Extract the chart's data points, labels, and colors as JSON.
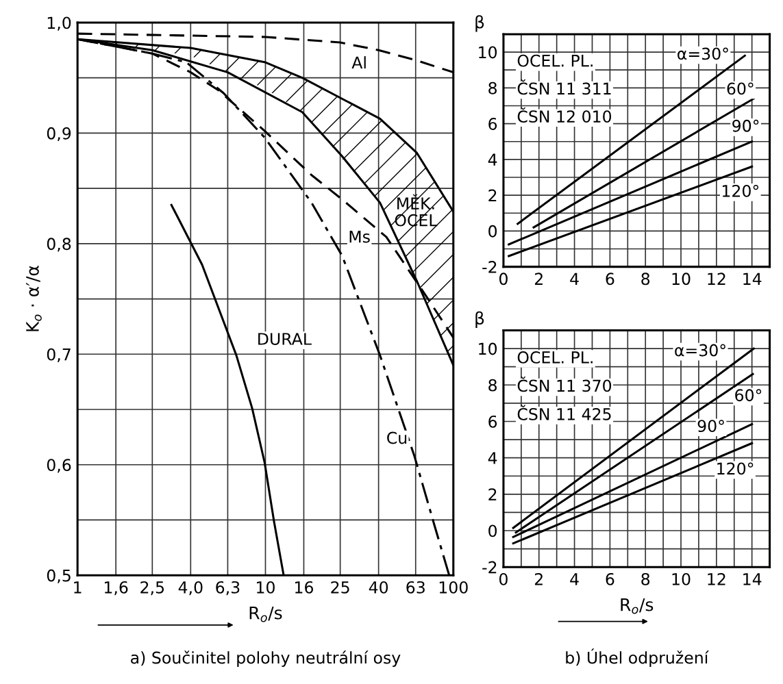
{
  "chart_data": [
    {
      "type": "line",
      "title": "a) Součinitel polohy neutrální osy",
      "xlabel": "R$_{o}$/s",
      "ylabel": "K$_{o}$ · α′/α",
      "log": "x",
      "grid": true,
      "xlim": [
        1,
        100
      ],
      "ylim": [
        0.5,
        1.0
      ],
      "xticks": [
        1,
        {
          "value": 1.6,
          "label": "1,6"
        },
        {
          "value": 2.5,
          "label": "2,5"
        },
        {
          "value": 4.0,
          "label": "4,0"
        },
        {
          "value": 6.3,
          "label": "6,3"
        },
        10,
        16,
        25,
        40,
        63,
        100
      ],
      "yticks": [
        {
          "value": 0.5,
          "label": "0,5"
        },
        {
          "value": 0.55,
          "label": null
        },
        {
          "value": 0.6,
          "label": "0,6"
        },
        {
          "value": 0.65,
          "label": null
        },
        {
          "value": 0.7,
          "label": "0,7"
        },
        {
          "value": 0.75,
          "label": null
        },
        {
          "value": 0.8,
          "label": "0,8"
        },
        {
          "value": 0.85,
          "label": null
        },
        {
          "value": 0.9,
          "label": "0,9"
        },
        {
          "value": 0.95,
          "label": null
        },
        {
          "value": 1.0,
          "label": "1,0"
        }
      ],
      "series": [
        {
          "name": "Al",
          "color": "#000000",
          "line_style": "dashed",
          "x": [
            1,
            10,
            25,
            40,
            63,
            100
          ],
          "values": [
            0.99,
            0.987,
            0.982,
            0.975,
            0.966,
            0.955
          ]
        },
        {
          "name": "MĚK. OCEL",
          "color": "#000000",
          "line_style": "solid",
          "x": [
            1,
            4,
            10,
            15.7,
            40.7,
            64,
            100
          ],
          "values": [
            0.985,
            0.977,
            0.964,
            0.95,
            0.913,
            0.882,
            0.829
          ],
          "lower": [
            0.985,
            0.97,
            0.94,
            0.919,
            0.837,
            0.766,
            0.69
          ],
          "upper": [
            0.985,
            0.977,
            0.964,
            0.95,
            0.913,
            0.882,
            0.829
          ]
        },
        {
          "color": "#000000",
          "line_style": "solid",
          "x": [
            1,
            2.5,
            6.3,
            15.7,
            25.6,
            40.7,
            64,
            100
          ],
          "values": [
            0.985,
            0.975,
            0.955,
            0.919,
            0.879,
            0.837,
            0.766,
            0.69
          ]
        },
        {
          "name": "Ms",
          "color": "#000000",
          "line_style": "dashed",
          "x": [
            1,
            2.5,
            4,
            5.6,
            9.9,
            17.6,
            25.6,
            44,
            72,
            100
          ],
          "values": [
            0.985,
            0.972,
            0.955,
            0.939,
            0.902,
            0.862,
            0.84,
            0.806,
            0.752,
            0.715
          ]
        },
        {
          "name": "Cu",
          "color": "#000000",
          "line_style": "dashdot",
          "x": [
            1,
            2.5,
            3.8,
            6.0,
            9.9,
            17.6,
            25.6,
            40.7,
            62,
            80,
            95
          ],
          "values": [
            0.985,
            0.972,
            0.964,
            0.936,
            0.896,
            0.837,
            0.789,
            0.699,
            0.608,
            0.543,
            0.5
          ]
        },
        {
          "name": "DURAL",
          "color": "#000000",
          "line_style": "solid",
          "x": [
            3.16,
            4.6,
            7.0,
            8.5,
            9.9,
            11.1,
            12.5
          ],
          "values": [
            0.835,
            0.781,
            0.699,
            0.651,
            0.602,
            0.549,
            0.5
          ]
        }
      ],
      "legend": false
    },
    {
      "type": "line",
      "ylabel": "β",
      "grid": true,
      "xlim": [
        0,
        15
      ],
      "ylim": [
        -2,
        11
      ],
      "xticks": [
        0,
        {
          "value": 1,
          "label": null
        },
        2,
        {
          "value": 3,
          "label": null
        },
        4,
        {
          "value": 5,
          "label": null
        },
        6,
        {
          "value": 7,
          "label": null
        },
        8,
        {
          "value": 9,
          "label": null
        },
        10,
        {
          "value": 11,
          "label": null
        },
        12,
        {
          "value": 13,
          "label": null
        },
        14
      ],
      "yticks": [
        -2,
        {
          "value": -1,
          "label": null
        },
        0,
        {
          "value": 1,
          "label": null
        },
        2,
        {
          "value": 3,
          "label": null
        },
        4,
        {
          "value": 5,
          "label": null
        },
        6,
        {
          "value": 7,
          "label": null
        },
        8,
        {
          "value": 9,
          "label": null
        },
        10
      ],
      "series": [
        {
          "name": "α=30°",
          "color": "#000000",
          "line_style": "solid",
          "x": [
            0.8,
            13.6
          ],
          "values": [
            0.4,
            9.8
          ]
        },
        {
          "name": "60°",
          "color": "#000000",
          "line_style": "solid",
          "x": [
            1.7,
            14.1
          ],
          "values": [
            0.2,
            7.4
          ]
        },
        {
          "name": "90°",
          "color": "#000000",
          "line_style": "solid",
          "x": [
            0.3,
            14
          ],
          "values": [
            -0.75,
            5.0
          ]
        },
        {
          "name": "120°",
          "color": "#000000",
          "line_style": "solid",
          "x": [
            0.3,
            14
          ],
          "values": [
            -1.4,
            3.6
          ]
        }
      ],
      "annotations": [
        "OCEL. PL.",
        "ČSN 11 311",
        "ČSN 12 010"
      ]
    },
    {
      "type": "line",
      "title": "b) Úhel odpružení",
      "xlabel": "R$_{o}$/s",
      "ylabel": "β",
      "grid": true,
      "xlim": [
        0,
        15
      ],
      "ylim": [
        -2,
        11
      ],
      "xticks": [
        0,
        {
          "value": 1,
          "label": null
        },
        2,
        {
          "value": 3,
          "label": null
        },
        4,
        {
          "value": 5,
          "label": null
        },
        6,
        {
          "value": 7,
          "label": null
        },
        8,
        {
          "value": 9,
          "label": null
        },
        10,
        {
          "value": 11,
          "label": null
        },
        12,
        {
          "value": 13,
          "label": null
        },
        14
      ],
      "yticks": [
        -2,
        {
          "value": -1,
          "label": null
        },
        0,
        {
          "value": 1,
          "label": null
        },
        2,
        {
          "value": 3,
          "label": null
        },
        4,
        {
          "value": 5,
          "label": null
        },
        6,
        {
          "value": 7,
          "label": null
        },
        8,
        {
          "value": 9,
          "label": null
        },
        10
      ],
      "series": [
        {
          "name": "α=30°",
          "color": "#000000",
          "line_style": "solid",
          "x": [
            0.55,
            14.1
          ],
          "values": [
            0.15,
            10.0
          ]
        },
        {
          "name": "60°",
          "color": "#000000",
          "line_style": "solid",
          "x": [
            0.7,
            14.05
          ],
          "values": [
            -0.1,
            8.6
          ]
        },
        {
          "name": "90°",
          "color": "#000000",
          "line_style": "solid",
          "x": [
            0.55,
            14
          ],
          "values": [
            -0.35,
            5.85
          ]
        },
        {
          "name": "120°",
          "color": "#000000",
          "line_style": "solid",
          "x": [
            0.55,
            14
          ],
          "values": [
            -0.7,
            4.8
          ]
        }
      ],
      "annotations": [
        "OCEL. PL.",
        "ČSN 11 370",
        "ČSN 11 425"
      ]
    }
  ]
}
